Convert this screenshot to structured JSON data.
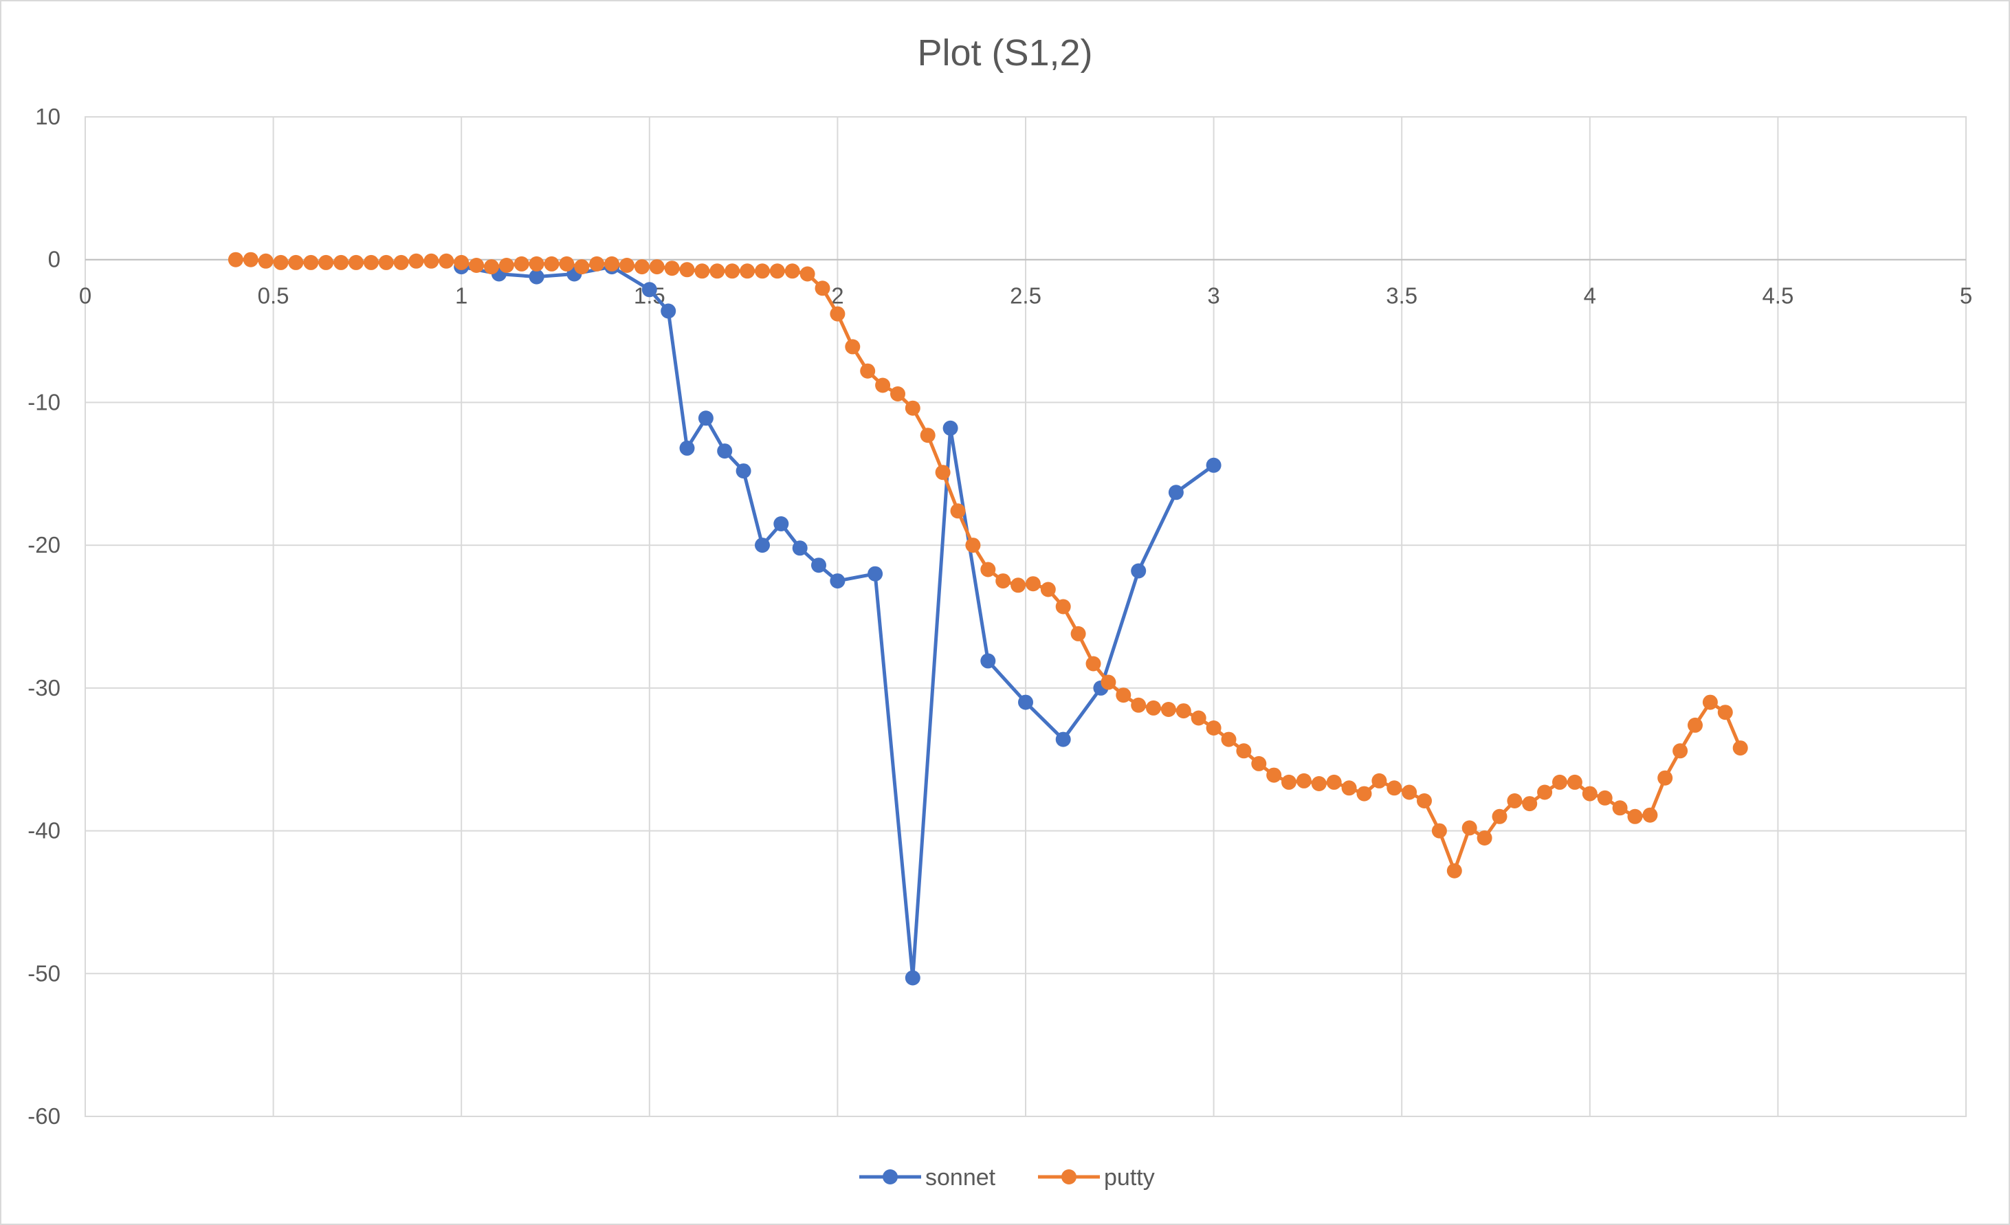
{
  "chart_data": {
    "type": "line",
    "title": "Plot (S1,2)",
    "xlabel": "",
    "ylabel": "",
    "xlim": [
      0,
      5
    ],
    "ylim": [
      -60,
      10
    ],
    "x_ticks": [
      0,
      0.5,
      1,
      1.5,
      2,
      2.5,
      3,
      3.5,
      4,
      4.5,
      5
    ],
    "x_tick_labels": [
      "0",
      "0.5",
      "1",
      "1.5",
      "2",
      "2.5",
      "3",
      "3.5",
      "4",
      "4.5",
      "5"
    ],
    "y_ticks": [
      10,
      0,
      -10,
      -20,
      -30,
      -40,
      -50,
      -60
    ],
    "y_tick_labels": [
      "10",
      "0",
      "-10",
      "-20",
      "-30",
      "-40",
      "-50",
      "-60"
    ],
    "grid": true,
    "legend_position": "bottom",
    "series": [
      {
        "name": "sonnet",
        "color": "#4472C4",
        "x": [
          1.0,
          1.1,
          1.2,
          1.3,
          1.4,
          1.5,
          1.55,
          1.6,
          1.65,
          1.7,
          1.75,
          1.8,
          1.85,
          1.9,
          1.95,
          2.0,
          2.1,
          2.2,
          2.3,
          2.4,
          2.5,
          2.6,
          2.7,
          2.8,
          2.9,
          3.0
        ],
        "y": [
          -0.5,
          -1.0,
          -1.2,
          -1.0,
          -0.5,
          -2.1,
          -3.6,
          -13.2,
          -11.1,
          -13.4,
          -14.8,
          -20.0,
          -18.5,
          -20.2,
          -21.4,
          -22.5,
          -22.0,
          -50.3,
          -11.8,
          -28.1,
          -31.0,
          -33.6,
          -30.0,
          -21.8,
          -16.3,
          -14.4
        ]
      },
      {
        "name": "putty",
        "color": "#ED7D31",
        "x": [
          0.4,
          0.44,
          0.48,
          0.52,
          0.56,
          0.6,
          0.64,
          0.68,
          0.72,
          0.76,
          0.8,
          0.84,
          0.88,
          0.92,
          0.96,
          1.0,
          1.04,
          1.08,
          1.12,
          1.16,
          1.2,
          1.24,
          1.28,
          1.32,
          1.36,
          1.4,
          1.44,
          1.48,
          1.52,
          1.56,
          1.6,
          1.64,
          1.68,
          1.72,
          1.76,
          1.8,
          1.84,
          1.88,
          1.92,
          1.96,
          2.0,
          2.04,
          2.08,
          2.12,
          2.16,
          2.2,
          2.24,
          2.28,
          2.32,
          2.36,
          2.4,
          2.44,
          2.48,
          2.52,
          2.56,
          2.6,
          2.64,
          2.68,
          2.72,
          2.76,
          2.8,
          2.84,
          2.88,
          2.92,
          2.96,
          3.0,
          3.04,
          3.08,
          3.12,
          3.16,
          3.2,
          3.24,
          3.28,
          3.32,
          3.36,
          3.4,
          3.44,
          3.48,
          3.52,
          3.56,
          3.6,
          3.64,
          3.68,
          3.72,
          3.76,
          3.8,
          3.84,
          3.88,
          3.92,
          3.96,
          4.0,
          4.04,
          4.08,
          4.12,
          4.16,
          4.2,
          4.24,
          4.28,
          4.32,
          4.36,
          4.4
        ],
        "y": [
          0.0,
          0.0,
          -0.1,
          -0.2,
          -0.2,
          -0.2,
          -0.2,
          -0.2,
          -0.2,
          -0.2,
          -0.2,
          -0.2,
          -0.1,
          -0.1,
          -0.1,
          -0.2,
          -0.4,
          -0.5,
          -0.4,
          -0.3,
          -0.3,
          -0.3,
          -0.3,
          -0.5,
          -0.3,
          -0.3,
          -0.4,
          -0.5,
          -0.5,
          -0.6,
          -0.7,
          -0.8,
          -0.8,
          -0.8,
          -0.8,
          -0.8,
          -0.8,
          -0.8,
          -1.0,
          -2.0,
          -3.8,
          -6.1,
          -7.8,
          -8.8,
          -9.4,
          -10.4,
          -12.3,
          -14.9,
          -17.6,
          -20.0,
          -21.7,
          -22.5,
          -22.8,
          -22.7,
          -23.1,
          -24.3,
          -26.2,
          -28.3,
          -29.6,
          -30.5,
          -31.2,
          -31.4,
          -31.5,
          -31.6,
          -32.1,
          -32.8,
          -33.6,
          -34.4,
          -35.3,
          -36.1,
          -36.6,
          -36.5,
          -36.7,
          -36.6,
          -37.0,
          -37.4,
          -36.5,
          -37.0,
          -37.3,
          -37.9,
          -40.0,
          -42.8,
          -39.8,
          -40.5,
          -39.0,
          -37.9,
          -38.1,
          -37.3,
          -36.6,
          -36.6,
          -37.4,
          -37.7,
          -38.4,
          -39.0,
          -38.9,
          -36.3,
          -34.4,
          -32.6,
          -31.0,
          -31.7,
          -34.2
        ]
      }
    ]
  }
}
